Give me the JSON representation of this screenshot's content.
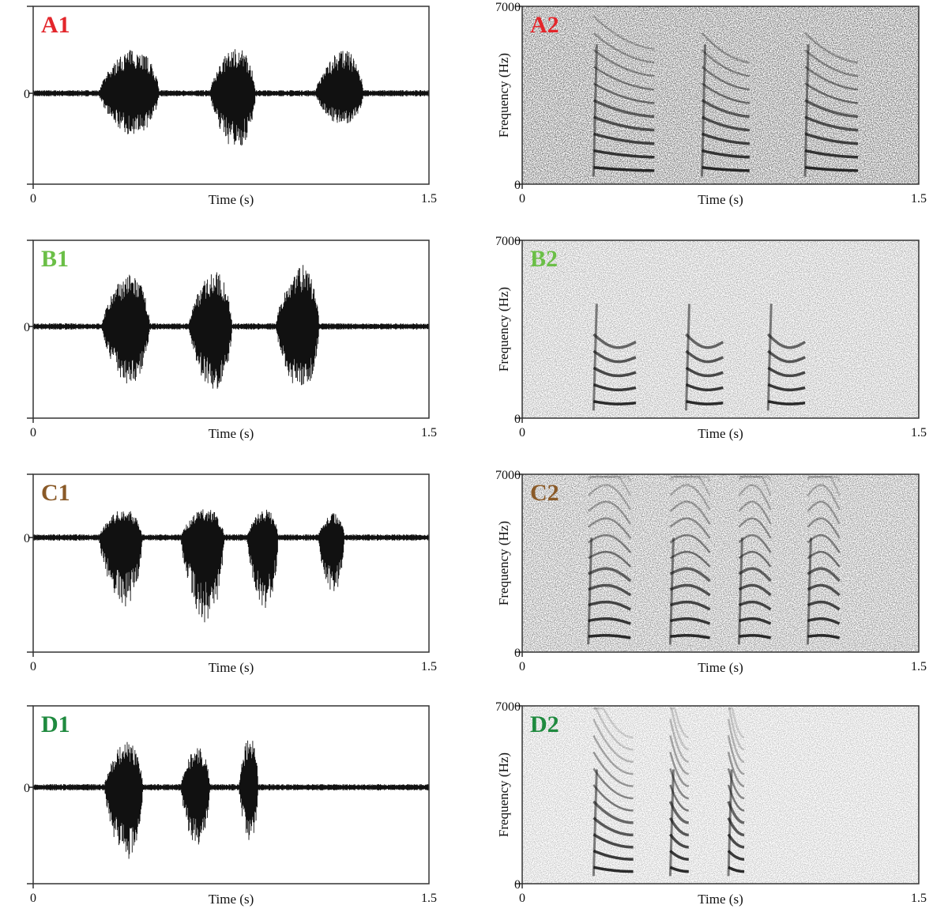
{
  "chart_data": [
    {
      "id": "A1",
      "type": "line",
      "kind": "waveform",
      "label": "A1",
      "label_color": "#e3262b",
      "xlabel": "Time (s)",
      "xlim": [
        0,
        1.5
      ],
      "x_ticks": [
        "0",
        "1.5"
      ],
      "y_ticks": [
        "0"
      ],
      "syllables": [
        {
          "start": 0.25,
          "end": 0.5,
          "amp_pos": 0.68,
          "amp_neg": 0.62
        },
        {
          "start": 0.67,
          "end": 0.86,
          "amp_pos": 0.7,
          "amp_neg": 0.82
        },
        {
          "start": 1.07,
          "end": 1.27,
          "amp_pos": 0.66,
          "amp_neg": 0.48
        }
      ]
    },
    {
      "id": "A2",
      "type": "heatmap",
      "kind": "spectrogram",
      "label": "A2",
      "label_color": "#e3262b",
      "xlabel": "Time (s)",
      "ylabel": "Frequency (Hz)",
      "xlim": [
        0,
        1.5
      ],
      "ylim": [
        0,
        7000
      ],
      "x_ticks": [
        "0",
        "1.5"
      ],
      "y_ticks": [
        "0",
        "7000"
      ],
      "syllables": [
        {
          "start": 0.27,
          "end": 0.5,
          "f0_hz": 560,
          "harmonics": 10
        },
        {
          "start": 0.68,
          "end": 0.86,
          "f0_hz": 560,
          "harmonics": 9
        },
        {
          "start": 1.07,
          "end": 1.27,
          "f0_hz": 560,
          "harmonics": 9
        }
      ]
    },
    {
      "id": "B1",
      "type": "line",
      "kind": "waveform",
      "label": "B1",
      "label_color": "#6bbf47",
      "xlabel": "Time (s)",
      "xlim": [
        0,
        1.5
      ],
      "x_ticks": [
        "0",
        "1.5"
      ],
      "y_ticks": [
        "0"
      ],
      "syllables": [
        {
          "start": 0.26,
          "end": 0.46,
          "amp_pos": 0.8,
          "amp_neg": 0.85
        },
        {
          "start": 0.59,
          "end": 0.77,
          "amp_pos": 0.85,
          "amp_neg": 0.95
        },
        {
          "start": 0.92,
          "end": 1.1,
          "amp_pos": 0.95,
          "amp_neg": 0.95
        }
      ]
    },
    {
      "id": "B2",
      "type": "heatmap",
      "kind": "spectrogram",
      "label": "B2",
      "label_color": "#6bbf47",
      "xlabel": "Time (s)",
      "ylabel": "Frequency (Hz)",
      "xlim": [
        0,
        1.5
      ],
      "ylim": [
        0,
        7000
      ],
      "x_ticks": [
        "0",
        "1.5"
      ],
      "y_ticks": [
        "0",
        "7000"
      ],
      "syllables": [
        {
          "start": 0.27,
          "end": 0.43,
          "f0_hz": 600,
          "harmonics": 5
        },
        {
          "start": 0.62,
          "end": 0.76,
          "f0_hz": 600,
          "harmonics": 5
        },
        {
          "start": 0.93,
          "end": 1.07,
          "f0_hz": 600,
          "harmonics": 5
        }
      ]
    },
    {
      "id": "C1",
      "type": "line",
      "kind": "waveform",
      "label": "C1",
      "label_color": "#8a5a28",
      "xlabel": "Time (s)",
      "xlim": [
        0,
        1.5
      ],
      "x_ticks": [
        "0",
        "1.5"
      ],
      "y_ticks": [
        "0"
      ],
      "syllables": [
        {
          "start": 0.25,
          "end": 0.43,
          "amp_pos": 0.6,
          "amp_neg": 0.8
        },
        {
          "start": 0.56,
          "end": 0.74,
          "amp_pos": 0.62,
          "amp_neg": 1.0
        },
        {
          "start": 0.81,
          "end": 0.94,
          "amp_pos": 0.6,
          "amp_neg": 0.85
        },
        {
          "start": 1.08,
          "end": 1.19,
          "amp_pos": 0.52,
          "amp_neg": 0.65
        }
      ]
    },
    {
      "id": "C2",
      "type": "heatmap",
      "kind": "spectrogram",
      "label": "C2",
      "label_color": "#8a5a28",
      "xlabel": "Time (s)",
      "ylabel": "Frequency (Hz)",
      "xlim": [
        0,
        1.5
      ],
      "ylim": [
        0,
        7000
      ],
      "x_ticks": [
        "0",
        "1.5"
      ],
      "y_ticks": [
        "0",
        "7000"
      ],
      "syllables": [
        {
          "start": 0.25,
          "end": 0.41,
          "f0_hz": 560,
          "harmonics": 12
        },
        {
          "start": 0.56,
          "end": 0.71,
          "f0_hz": 560,
          "harmonics": 12
        },
        {
          "start": 0.82,
          "end": 0.94,
          "f0_hz": 560,
          "harmonics": 12
        },
        {
          "start": 1.08,
          "end": 1.2,
          "f0_hz": 560,
          "harmonics": 12
        }
      ]
    },
    {
      "id": "D1",
      "type": "line",
      "kind": "waveform",
      "label": "D1",
      "label_color": "#1f8a3f",
      "xlabel": "Time (s)",
      "xlim": [
        0,
        1.5
      ],
      "x_ticks": [
        "0",
        "1.5"
      ],
      "y_ticks": [
        "0"
      ],
      "syllables": [
        {
          "start": 0.27,
          "end": 0.43,
          "amp_pos": 0.75,
          "amp_neg": 1.0
        },
        {
          "start": 0.56,
          "end": 0.68,
          "amp_pos": 0.65,
          "amp_neg": 0.85
        },
        {
          "start": 0.78,
          "end": 0.86,
          "amp_pos": 0.85,
          "amp_neg": 0.75
        }
      ]
    },
    {
      "id": "D2",
      "type": "heatmap",
      "kind": "spectrogram",
      "label": "D2",
      "label_color": "#1f8a3f",
      "xlabel": "Time (s)",
      "ylabel": "Frequency (Hz)",
      "xlim": [
        0,
        1.5
      ],
      "ylim": [
        0,
        7000
      ],
      "x_ticks": [
        "0",
        "1.5"
      ],
      "y_ticks": [
        "0",
        "7000"
      ],
      "syllables": [
        {
          "start": 0.27,
          "end": 0.42,
          "f0_hz": 480,
          "harmonics": 12
        },
        {
          "start": 0.56,
          "end": 0.63,
          "f0_hz": 480,
          "harmonics": 12
        },
        {
          "start": 0.78,
          "end": 0.84,
          "f0_hz": 480,
          "harmonics": 12
        }
      ]
    }
  ]
}
